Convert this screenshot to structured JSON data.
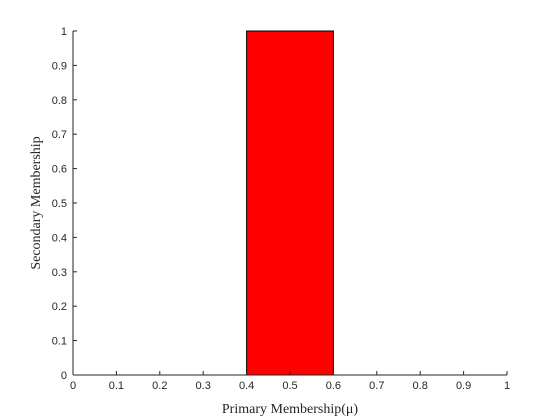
{
  "chart_data": {
    "type": "bar",
    "xlabel": "Primary Membership(μ)",
    "ylabel": "Secondary Membership",
    "xlim": [
      0,
      1
    ],
    "ylim": [
      0,
      1
    ],
    "xticks": [
      "0",
      "0.1",
      "0.2",
      "0.3",
      "0.4",
      "0.5",
      "0.6",
      "0.7",
      "0.8",
      "0.9",
      "1"
    ],
    "yticks": [
      "0",
      "0.1",
      "0.2",
      "0.3",
      "0.4",
      "0.5",
      "0.6",
      "0.7",
      "0.8",
      "0.9",
      "1"
    ],
    "bars": [
      {
        "x_start": 0.4,
        "x_end": 0.6,
        "value": 1.0,
        "color": "#ff0000"
      }
    ],
    "grid": false
  }
}
